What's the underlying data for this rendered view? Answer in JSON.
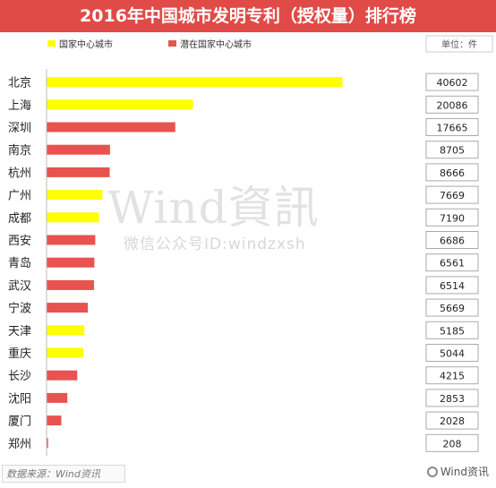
{
  "chart_data": {
    "type": "bar",
    "orientation": "horizontal",
    "title": "2016年中国城市发明专利（授权量）排行榜",
    "unit_label": "单位：件",
    "legend": [
      {
        "name": "国家中心城市",
        "color": "#ffff00"
      },
      {
        "name": "潜在国家中心城市",
        "color": "#e8534f"
      }
    ],
    "categories": [
      "北京",
      "上海",
      "深圳",
      "南京",
      "杭州",
      "广州",
      "成都",
      "西安",
      "青岛",
      "武汉",
      "宁波",
      "天津",
      "重庆",
      "长沙",
      "沈阳",
      "厦门",
      "郑州"
    ],
    "values": [
      40602,
      20086,
      17665,
      8705,
      8666,
      7669,
      7190,
      6686,
      6561,
      6514,
      5669,
      5185,
      5044,
      4215,
      2853,
      2028,
      208
    ],
    "value_labels": [
      "40602",
      "20086",
      "17665",
      "8705",
      "8666",
      "7669",
      "7190",
      "6686",
      "6561",
      "6514",
      "5669",
      "5185",
      "5044",
      "4215",
      "2853",
      "2028",
      "208"
    ],
    "group": [
      0,
      0,
      1,
      1,
      1,
      0,
      0,
      1,
      1,
      1,
      1,
      0,
      0,
      1,
      1,
      1,
      1
    ],
    "xlim": [
      0,
      50000
    ],
    "xticks": [
      0,
      10000,
      20000,
      30000,
      40000,
      50000
    ],
    "xtick_labels": [
      "0",
      "10000",
      "20000",
      "30000",
      "40000",
      "50000"
    ],
    "legend_position": "top",
    "grid": false
  },
  "source": "数据来源：Wind资讯",
  "watermark": {
    "line1": "Wind資訊",
    "line2": "微信公众号ID:windzxsh"
  },
  "brand": "Wind资讯"
}
